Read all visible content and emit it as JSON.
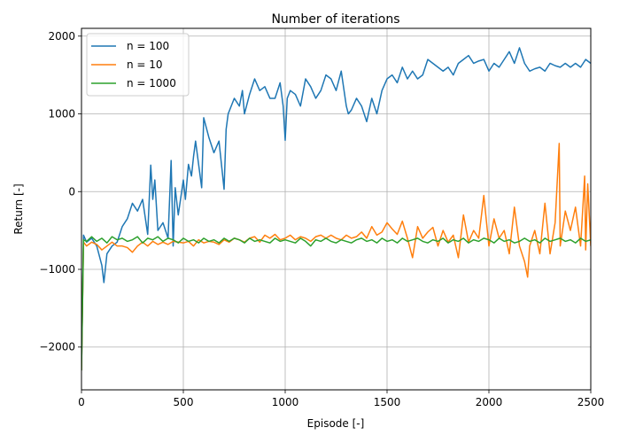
{
  "chart_data": {
    "type": "line",
    "title": "Number of iterations",
    "xlabel": "Episode [-]",
    "ylabel": "Return [-]",
    "xlim": [
      0,
      2500
    ],
    "ylim": [
      -2550,
      2100
    ],
    "xticks": [
      0,
      500,
      1000,
      1500,
      2000,
      2500
    ],
    "xtick_labels": [
      "0",
      "500",
      "1000",
      "1500",
      "2000",
      "2500"
    ],
    "yticks": [
      -2000,
      -1000,
      0,
      1000,
      2000
    ],
    "ytick_labels": [
      "−2000",
      "−1000",
      "0",
      "1000",
      "2000"
    ],
    "grid": true,
    "legend_location": "upper left",
    "series": [
      {
        "name": "n = 100",
        "color": "#1f77b4",
        "x": [
          0,
          10,
          25,
          50,
          75,
          100,
          110,
          125,
          150,
          175,
          200,
          225,
          250,
          275,
          300,
          325,
          340,
          350,
          360,
          375,
          400,
          425,
          440,
          450,
          460,
          475,
          500,
          510,
          525,
          540,
          550,
          560,
          575,
          590,
          600,
          625,
          650,
          675,
          700,
          710,
          720,
          750,
          775,
          790,
          800,
          825,
          850,
          875,
          900,
          925,
          950,
          975,
          990,
          1000,
          1010,
          1025,
          1050,
          1075,
          1100,
          1125,
          1150,
          1175,
          1200,
          1225,
          1250,
          1275,
          1300,
          1310,
          1325,
          1350,
          1375,
          1400,
          1425,
          1450,
          1475,
          1500,
          1525,
          1550,
          1575,
          1600,
          1625,
          1650,
          1675,
          1700,
          1725,
          1750,
          1775,
          1800,
          1825,
          1850,
          1875,
          1900,
          1925,
          1950,
          1975,
          2000,
          2025,
          2050,
          2075,
          2100,
          2125,
          2150,
          2175,
          2200,
          2225,
          2250,
          2275,
          2300,
          2325,
          2350,
          2375,
          2400,
          2425,
          2450,
          2475,
          2500
        ],
        "y": [
          -2300,
          -560,
          -650,
          -600,
          -700,
          -950,
          -1170,
          -800,
          -700,
          -650,
          -450,
          -350,
          -150,
          -250,
          -100,
          -550,
          340,
          -100,
          150,
          -500,
          -400,
          -600,
          400,
          -700,
          50,
          -300,
          150,
          -100,
          350,
          200,
          450,
          650,
          350,
          50,
          950,
          700,
          500,
          650,
          30,
          800,
          1000,
          1200,
          1100,
          1300,
          1000,
          1250,
          1450,
          1300,
          1350,
          1200,
          1200,
          1400,
          1100,
          660,
          1200,
          1300,
          1250,
          1100,
          1450,
          1350,
          1200,
          1300,
          1500,
          1450,
          1300,
          1550,
          1100,
          1000,
          1050,
          1200,
          1100,
          900,
          1200,
          1000,
          1300,
          1450,
          1500,
          1400,
          1600,
          1450,
          1550,
          1450,
          1500,
          1700,
          1650,
          1600,
          1550,
          1600,
          1500,
          1650,
          1700,
          1750,
          1650,
          1680,
          1700,
          1550,
          1650,
          1600,
          1700,
          1800,
          1650,
          1850,
          1650,
          1550,
          1580,
          1600,
          1550,
          1650,
          1620,
          1600,
          1650,
          1600,
          1650,
          1600,
          1700,
          1650
        ]
      },
      {
        "name": "n = 10",
        "color": "#ff7f0e",
        "x": [
          0,
          10,
          25,
          50,
          75,
          100,
          125,
          150,
          175,
          200,
          225,
          250,
          275,
          300,
          325,
          350,
          375,
          400,
          425,
          450,
          475,
          500,
          525,
          550,
          575,
          600,
          625,
          650,
          675,
          700,
          725,
          750,
          775,
          800,
          825,
          850,
          875,
          900,
          925,
          950,
          975,
          1000,
          1025,
          1050,
          1075,
          1100,
          1125,
          1150,
          1175,
          1200,
          1225,
          1250,
          1275,
          1300,
          1325,
          1350,
          1375,
          1400,
          1425,
          1450,
          1475,
          1500,
          1525,
          1550,
          1575,
          1600,
          1625,
          1650,
          1675,
          1700,
          1725,
          1750,
          1775,
          1800,
          1825,
          1850,
          1875,
          1900,
          1925,
          1950,
          1975,
          2000,
          2025,
          2050,
          2075,
          2100,
          2125,
          2150,
          2175,
          2190,
          2200,
          2225,
          2250,
          2275,
          2300,
          2325,
          2345,
          2350,
          2375,
          2400,
          2425,
          2450,
          2470,
          2475,
          2485,
          2500
        ],
        "y": [
          -2300,
          -650,
          -700,
          -650,
          -680,
          -750,
          -700,
          -650,
          -700,
          -700,
          -720,
          -780,
          -700,
          -650,
          -700,
          -640,
          -680,
          -650,
          -680,
          -640,
          -650,
          -660,
          -640,
          -700,
          -620,
          -660,
          -640,
          -650,
          -680,
          -620,
          -650,
          -600,
          -620,
          -650,
          -600,
          -580,
          -650,
          -560,
          -600,
          -550,
          -620,
          -600,
          -560,
          -620,
          -580,
          -600,
          -640,
          -580,
          -560,
          -600,
          -560,
          -600,
          -620,
          -560,
          -600,
          -580,
          -520,
          -600,
          -450,
          -560,
          -520,
          -400,
          -480,
          -550,
          -380,
          -600,
          -850,
          -450,
          -600,
          -520,
          -460,
          -700,
          -500,
          -650,
          -560,
          -850,
          -300,
          -650,
          -500,
          -600,
          -50,
          -700,
          -350,
          -600,
          -500,
          -800,
          -200,
          -700,
          -900,
          -1100,
          -700,
          -500,
          -800,
          -150,
          -800,
          -400,
          620,
          -700,
          -250,
          -500,
          -200,
          -700,
          200,
          -750,
          100,
          -700
        ]
      },
      {
        "name": "n = 1000",
        "color": "#2ca02c",
        "x": [
          0,
          10,
          25,
          50,
          75,
          100,
          125,
          150,
          175,
          200,
          225,
          250,
          275,
          300,
          325,
          350,
          375,
          400,
          425,
          450,
          475,
          500,
          525,
          550,
          575,
          600,
          625,
          650,
          675,
          700,
          725,
          750,
          775,
          800,
          825,
          850,
          875,
          900,
          925,
          950,
          975,
          1000,
          1025,
          1050,
          1075,
          1100,
          1125,
          1150,
          1175,
          1200,
          1225,
          1250,
          1275,
          1300,
          1325,
          1350,
          1375,
          1400,
          1425,
          1450,
          1475,
          1500,
          1525,
          1550,
          1575,
          1600,
          1625,
          1650,
          1675,
          1700,
          1725,
          1750,
          1775,
          1800,
          1825,
          1850,
          1875,
          1900,
          1925,
          1950,
          1975,
          2000,
          2025,
          2050,
          2075,
          2100,
          2125,
          2150,
          2175,
          2200,
          2225,
          2250,
          2275,
          2300,
          2325,
          2350,
          2375,
          2400,
          2425,
          2450,
          2475,
          2500
        ],
        "y": [
          -2300,
          -620,
          -640,
          -580,
          -640,
          -600,
          -660,
          -580,
          -620,
          -600,
          -640,
          -620,
          -580,
          -660,
          -600,
          -620,
          -580,
          -640,
          -600,
          -620,
          -660,
          -600,
          -640,
          -620,
          -660,
          -600,
          -640,
          -620,
          -660,
          -600,
          -640,
          -600,
          -620,
          -660,
          -600,
          -640,
          -620,
          -640,
          -660,
          -600,
          -640,
          -620,
          -640,
          -660,
          -600,
          -640,
          -700,
          -620,
          -640,
          -600,
          -640,
          -660,
          -620,
          -640,
          -660,
          -620,
          -600,
          -640,
          -620,
          -660,
          -600,
          -640,
          -620,
          -660,
          -600,
          -640,
          -620,
          -600,
          -640,
          -660,
          -620,
          -640,
          -600,
          -660,
          -620,
          -640,
          -600,
          -660,
          -620,
          -640,
          -600,
          -620,
          -660,
          -600,
          -640,
          -620,
          -660,
          -640,
          -600,
          -640,
          -620,
          -660,
          -600,
          -640,
          -620,
          -600,
          -640,
          -620,
          -660,
          -600,
          -640,
          -620
        ]
      }
    ]
  }
}
